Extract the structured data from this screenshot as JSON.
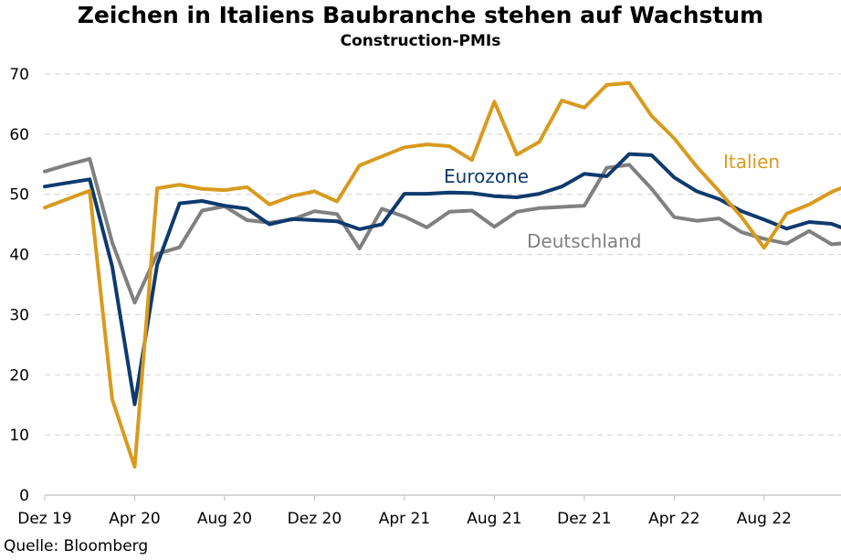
{
  "chart_data": {
    "type": "line",
    "title": "Zeichen in Italiens Baubranche stehen auf Wachstum",
    "subtitle": "Construction-PMIs",
    "source": "Quelle: Bloomberg",
    "xlabel": "",
    "ylabel": "",
    "ylim": [
      0,
      70
    ],
    "yticks": [
      "0",
      "10",
      "20",
      "30",
      "40",
      "50",
      "60",
      "70"
    ],
    "xticks": [
      "Dez 19",
      "Apr 20",
      "Aug 20",
      "Dez 20",
      "Apr 21",
      "Aug 21",
      "Dez 21",
      "Apr 22",
      "Aug 22"
    ],
    "x": [
      "2019-12",
      "2020-01",
      "2020-02",
      "2020-03",
      "2020-04",
      "2020-05",
      "2020-06",
      "2020-07",
      "2020-08",
      "2020-09",
      "2020-10",
      "2020-11",
      "2020-12",
      "2021-01",
      "2021-02",
      "2021-03",
      "2021-04",
      "2021-05",
      "2021-06",
      "2021-07",
      "2021-08",
      "2021-09",
      "2021-10",
      "2021-11",
      "2021-12",
      "2022-01",
      "2022-02",
      "2022-03",
      "2022-04",
      "2022-05",
      "2022-06",
      "2022-07",
      "2022-08",
      "2022-09",
      "2022-10",
      "2022-11",
      "2022-12"
    ],
    "grid": true,
    "series": [
      {
        "name": "Italien",
        "color": "#D99A1E",
        "values": [
          47.8,
          49.2,
          50.6,
          15.9,
          4.7,
          51.0,
          51.6,
          50.9,
          50.7,
          51.2,
          48.3,
          49.7,
          50.5,
          48.8,
          54.8,
          56.3,
          57.8,
          58.3,
          58.0,
          55.7,
          65.4,
          56.6,
          58.7,
          65.6,
          64.4,
          68.2,
          68.5,
          63.0,
          59.3,
          54.6,
          50.5,
          46.2,
          41.1,
          46.8,
          48.3,
          50.4,
          51.9
        ]
      },
      {
        "name": "Eurozone",
        "color": "#0E3A6E",
        "values": [
          51.3,
          51.9,
          52.5,
          38.0,
          15.1,
          38.3,
          48.5,
          48.9,
          48.1,
          47.6,
          45.0,
          45.9,
          45.7,
          45.5,
          44.2,
          45.0,
          50.1,
          50.1,
          50.3,
          50.2,
          49.7,
          49.5,
          50.1,
          51.3,
          53.4,
          53.0,
          56.7,
          56.5,
          52.8,
          50.5,
          49.2,
          47.2,
          45.8,
          44.3,
          45.4,
          45.1,
          43.7
        ]
      },
      {
        "name": "Deutschland",
        "color": "#808080",
        "values": [
          53.8,
          54.9,
          55.9,
          42.0,
          32.0,
          40.1,
          41.2,
          47.3,
          48.0,
          45.7,
          45.3,
          45.8,
          47.2,
          46.7,
          41.0,
          47.6,
          46.3,
          44.5,
          47.1,
          47.3,
          44.6,
          47.1,
          47.7,
          47.9,
          48.1,
          54.4,
          54.9,
          50.9,
          46.2,
          45.6,
          46.0,
          43.7,
          42.6,
          41.8,
          43.9,
          41.7,
          42.0
        ]
      }
    ]
  }
}
